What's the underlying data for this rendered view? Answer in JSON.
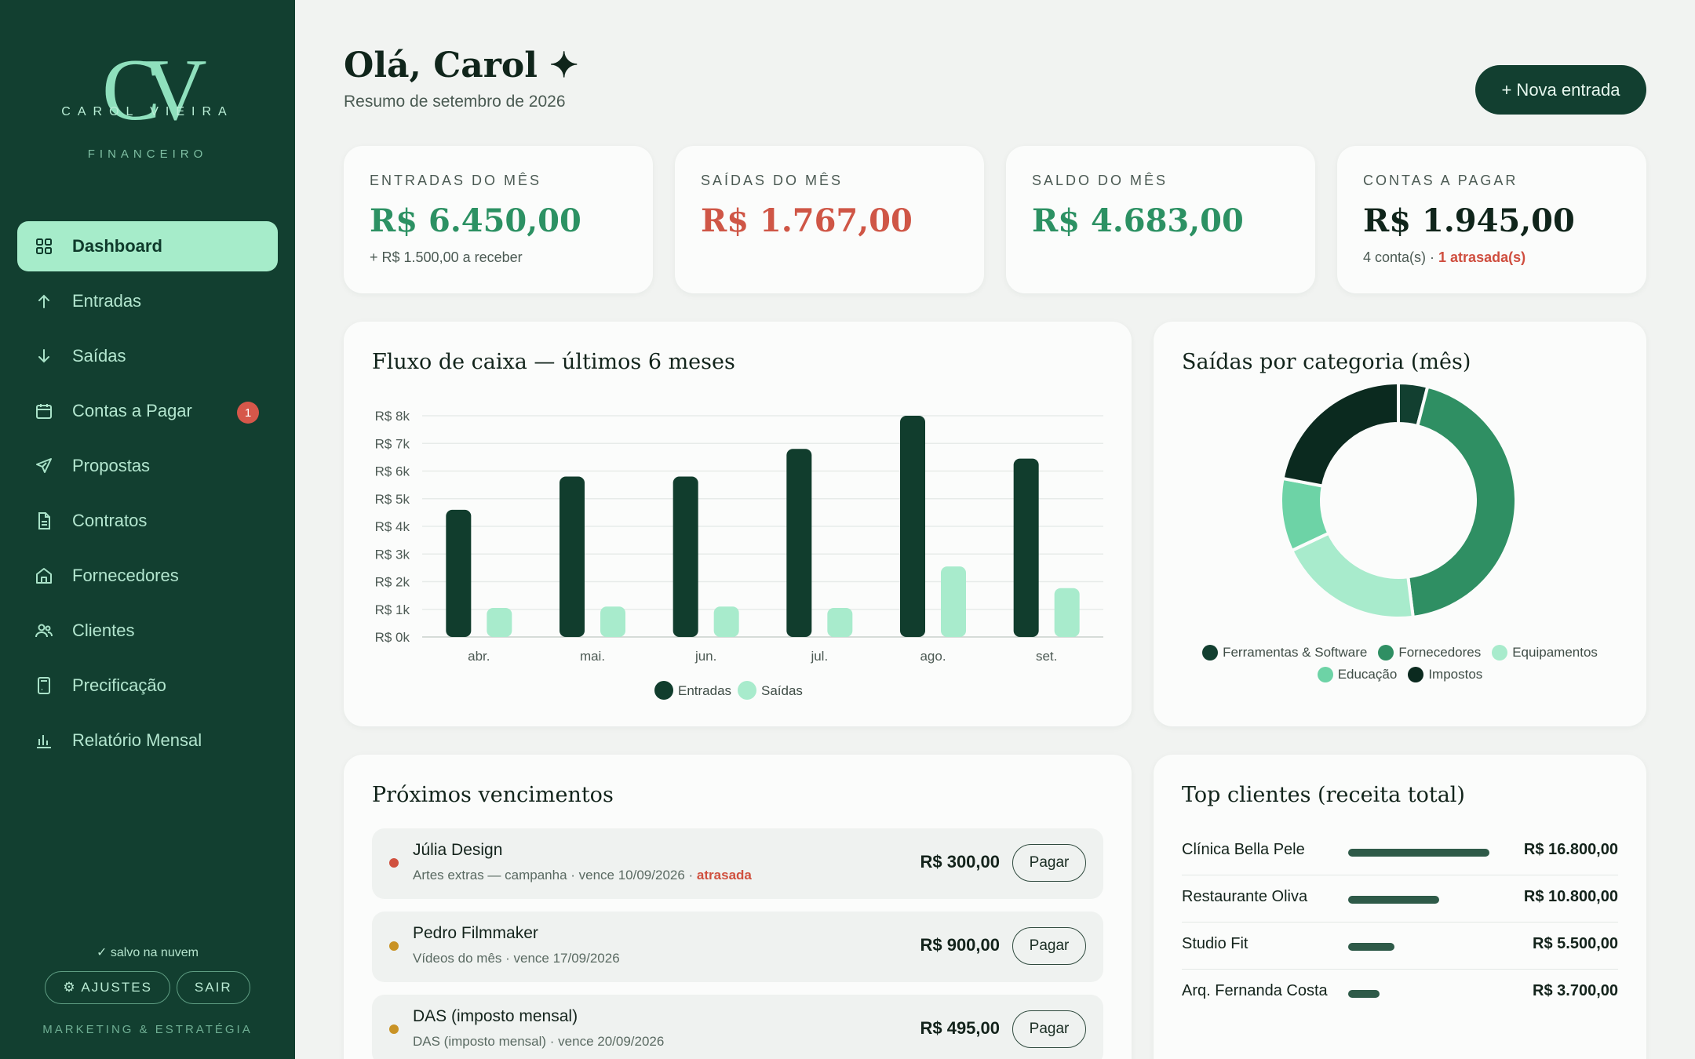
{
  "brand": {
    "monogram": "CV",
    "name": "CAROL VIEIRA",
    "subtitle": "FINANCEIRO"
  },
  "sidebar": {
    "items": [
      {
        "label": "Dashboard",
        "icon": "dashboard-icon",
        "active": true
      },
      {
        "label": "Entradas",
        "icon": "arrow-up-icon"
      },
      {
        "label": "Saídas",
        "icon": "arrow-down-icon"
      },
      {
        "label": "Contas a Pagar",
        "icon": "calendar-icon",
        "badge": "1"
      },
      {
        "label": "Propostas",
        "icon": "send-icon"
      },
      {
        "label": "Contratos",
        "icon": "document-icon"
      },
      {
        "label": "Fornecedores",
        "icon": "store-icon"
      },
      {
        "label": "Clientes",
        "icon": "users-icon"
      },
      {
        "label": "Precificação",
        "icon": "calculator-icon"
      },
      {
        "label": "Relatório Mensal",
        "icon": "bar-chart-icon"
      }
    ],
    "saved_status": "✓ salvo na nuvem",
    "settings_label": "⚙ AJUSTES",
    "logout_label": "SAIR",
    "tagline": "MARKETING & ESTRATÉGIA"
  },
  "header": {
    "greeting": "Olá, Carol ✦",
    "subtitle": "Resumo de setembro de 2026",
    "new_entry_label": "+ Nova entrada"
  },
  "stats": {
    "income": {
      "label": "ENTRADAS DO MÊS",
      "value": "R$ 6.450,00",
      "note": "+ R$ 1.500,00 a receber"
    },
    "expenses": {
      "label": "SAÍDAS DO MÊS",
      "value": "R$ 1.767,00"
    },
    "balance": {
      "label": "SALDO DO MÊS",
      "value": "R$ 4.683,00"
    },
    "payables": {
      "label": "CONTAS A PAGAR",
      "value": "R$ 1.945,00",
      "note_prefix": "4 conta(s) · ",
      "note_late": "1 atrasada(s)"
    }
  },
  "colors": {
    "sidebar_bg": "#123f30",
    "accent_green": "#2c9163",
    "accent_red": "#cf5646",
    "income_bar": "#113d2d",
    "expense_bar": "#a8ebcc"
  },
  "cashflow": {
    "title": "Fluxo de caixa — últimos 6 meses"
  },
  "categories": {
    "title": "Saídas por categoria (mês)"
  },
  "chart_data": [
    {
      "type": "bar",
      "title": "Fluxo de caixa — últimos 6 meses",
      "categories": [
        "abr.",
        "mai.",
        "jun.",
        "jul.",
        "ago.",
        "set."
      ],
      "y_ticks": [
        "R$ 0k",
        "R$ 1k",
        "R$ 2k",
        "R$ 3k",
        "R$ 4k",
        "R$ 5k",
        "R$ 6k",
        "R$ 7k",
        "R$ 8k"
      ],
      "ylim": [
        0,
        8000
      ],
      "grid": true,
      "legend_position": "bottom",
      "series": [
        {
          "name": "Entradas",
          "color": "#113d2d",
          "values": [
            4600,
            5800,
            5800,
            6800,
            8000,
            6450
          ]
        },
        {
          "name": "Saídas",
          "color": "#a8ebcc",
          "values": [
            1050,
            1100,
            1100,
            1050,
            2550,
            1767
          ]
        }
      ]
    },
    {
      "type": "pie",
      "title": "Saídas por categoria (mês)",
      "donut": true,
      "legend_position": "bottom",
      "slices": [
        {
          "name": "Ferramentas & Software",
          "value": 4,
          "color": "#123f30"
        },
        {
          "name": "Fornecedores",
          "value": 44,
          "color": "#2f8f63"
        },
        {
          "name": "Equipamentos",
          "value": 20,
          "color": "#a8ebcc"
        },
        {
          "name": "Educação",
          "value": 10,
          "color": "#6dd3a6"
        },
        {
          "name": "Impostos",
          "value": 22,
          "color": "#0b2a1f"
        }
      ]
    }
  ],
  "upcoming": {
    "title": "Próximos vencimentos",
    "items": [
      {
        "name": "Júlia Design",
        "desc": "Artes extras — campanha · vence 10/09/2026 · ",
        "late": "atrasada",
        "amount": "R$ 300,00",
        "action": "Pagar",
        "dot": "#d0513f"
      },
      {
        "name": "Pedro Filmmaker",
        "desc": "Vídeos do mês · vence 17/09/2026",
        "late": "",
        "amount": "R$ 900,00",
        "action": "Pagar",
        "dot": "#c99325"
      },
      {
        "name": "DAS (imposto mensal)",
        "desc": "DAS (imposto mensal) · vence 20/09/2026",
        "late": "",
        "amount": "R$ 495,00",
        "action": "Pagar",
        "dot": "#c99325"
      }
    ]
  },
  "top_clients": {
    "title": "Top clientes (receita total)",
    "items": [
      {
        "name": "Clínica Bella Pele",
        "value": "R$ 16.800,00",
        "amount": 16800
      },
      {
        "name": "Restaurante Oliva",
        "value": "R$ 10.800,00",
        "amount": 10800
      },
      {
        "name": "Studio Fit",
        "value": "R$ 5.500,00",
        "amount": 5500
      },
      {
        "name": "Arq. Fernanda Costa",
        "value": "R$ 3.700,00",
        "amount": 3700
      }
    ]
  }
}
